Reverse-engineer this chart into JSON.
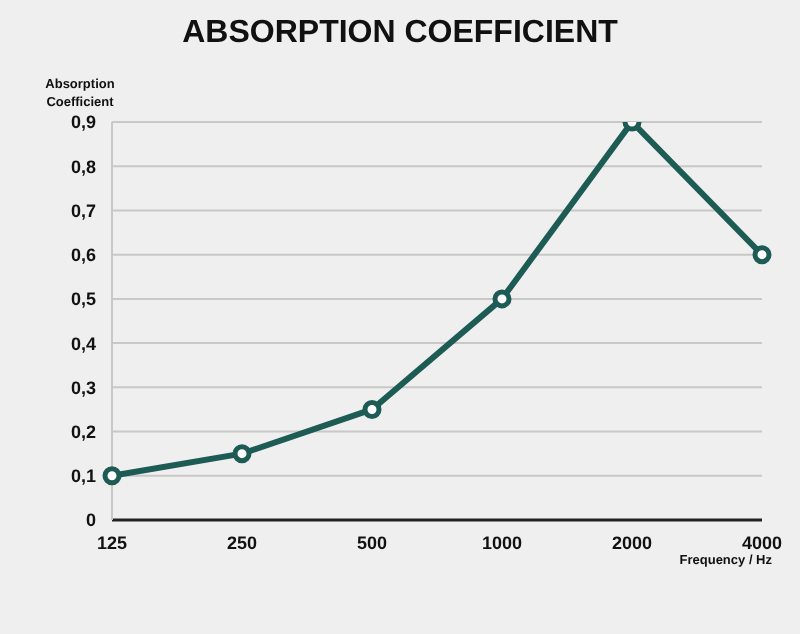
{
  "chart_data": {
    "type": "line",
    "title": "ABSORPTION COEFFICIENT",
    "ylabel": "Absorption Coefficient",
    "xlabel": "Frequency / Hz",
    "categories": [
      "125",
      "250",
      "500",
      "1000",
      "2000",
      "4000"
    ],
    "series": [
      {
        "color": "#1d5b55",
        "values": [
          0.1,
          0.15,
          0.25,
          0.5,
          0.9,
          0.6
        ]
      }
    ],
    "ylim": [
      0,
      0.9
    ],
    "yticks": [
      0,
      {
        "value": 0.1,
        "label": "0,1"
      },
      {
        "value": 0.2,
        "label": "0,2"
      },
      {
        "value": 0.3,
        "label": "0,3"
      },
      {
        "value": 0.4,
        "label": "0,4"
      },
      {
        "value": 0.5,
        "label": "0,5"
      },
      {
        "value": 0.6,
        "label": "0,6"
      },
      {
        "value": 0.7,
        "label": "0,7"
      },
      {
        "value": 0.8,
        "label": "0,8"
      },
      {
        "value": 0.9,
        "label": "0,9"
      }
    ],
    "grid": "y",
    "legend": false,
    "marker": "circle",
    "line_style": "solid"
  }
}
